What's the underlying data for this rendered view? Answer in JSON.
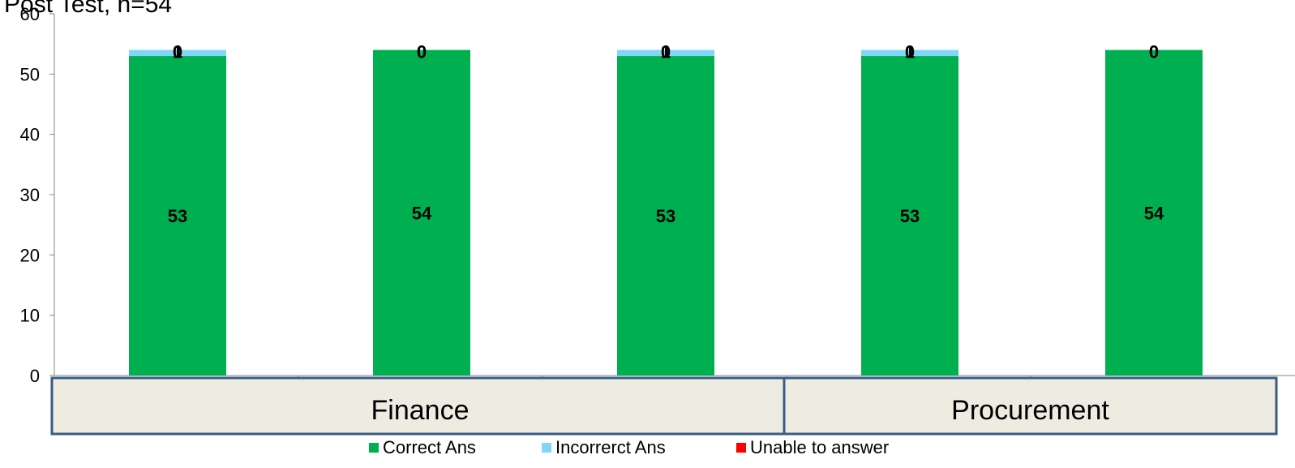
{
  "chart_data": {
    "type": "bar",
    "stacked": true,
    "title": "Post Test, n=54",
    "ylim": [
      0,
      60
    ],
    "yticks": [
      0,
      10,
      20,
      30,
      40,
      50,
      60
    ],
    "categories": [
      "",
      "",
      "",
      "",
      ""
    ],
    "groups": [
      {
        "label": "Finance",
        "span": [
          0,
          2
        ]
      },
      {
        "label": "Procurement",
        "span": [
          3,
          4
        ]
      }
    ],
    "series": [
      {
        "name": "Correct Ans",
        "color": "#00b050",
        "values": [
          53,
          54,
          53,
          53,
          54
        ]
      },
      {
        "name": "Incorrerct Ans",
        "color": "#7fd6f7",
        "values": [
          1,
          0,
          1,
          1,
          0
        ]
      },
      {
        "name": "Unable to answer",
        "color": "#ff0000",
        "values": [
          0,
          0,
          0,
          0,
          0
        ]
      }
    ],
    "legend": "bottom",
    "grid": false
  }
}
